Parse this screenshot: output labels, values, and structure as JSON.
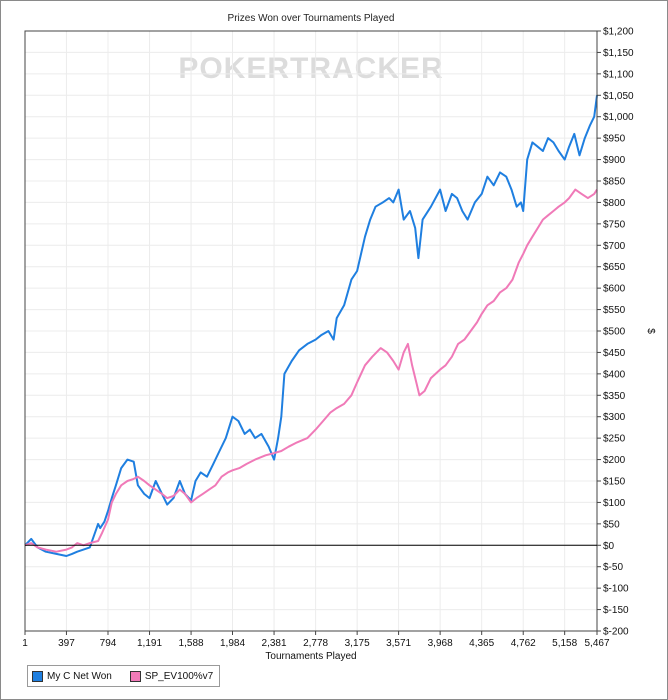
{
  "chart_data": {
    "type": "line",
    "title": "Prizes Won over Tournaments Played",
    "xlabel": "Tournaments Played",
    "ylabel": "$",
    "watermark": "POKERTRACKER",
    "xlim": [
      1,
      5467
    ],
    "ylim": [
      -200,
      1200
    ],
    "x_ticks": [
      1,
      397,
      794,
      1191,
      1588,
      1984,
      2381,
      2778,
      3175,
      3571,
      3968,
      4365,
      4762,
      5158,
      5467
    ],
    "x_tick_labels": [
      "1",
      "397",
      "794",
      "1,191",
      "1,588",
      "1,984",
      "2,381",
      "2,778",
      "3,175",
      "3,571",
      "3,968",
      "4,365",
      "4,762",
      "5,158",
      "5,467"
    ],
    "y_ticks": [
      -200,
      -150,
      -100,
      -50,
      0,
      50,
      100,
      150,
      200,
      250,
      300,
      350,
      400,
      450,
      500,
      550,
      600,
      650,
      700,
      750,
      800,
      850,
      900,
      950,
      1000,
      1050,
      1100,
      1150,
      1200
    ],
    "y_tick_labels": [
      "$-200",
      "$-150",
      "$-100",
      "$-50",
      "$0",
      "$50",
      "$100",
      "$150",
      "$200",
      "$250",
      "$300",
      "$350",
      "$400",
      "$450",
      "$500",
      "$550",
      "$600",
      "$650",
      "$700",
      "$750",
      "$800",
      "$850",
      "$900",
      "$950",
      "$1,000",
      "$1,050",
      "$1,100",
      "$1,150",
      "$1,200"
    ],
    "grid": true,
    "legend_position": "bottom-left",
    "series": [
      {
        "name": "My C Net Won",
        "color": "#1f7fe0",
        "x": [
          1,
          60,
          120,
          200,
          300,
          397,
          450,
          500,
          560,
          620,
          700,
          720,
          760,
          794,
          830,
          870,
          920,
          980,
          1040,
          1080,
          1140,
          1191,
          1250,
          1310,
          1360,
          1420,
          1480,
          1530,
          1588,
          1630,
          1680,
          1740,
          1800,
          1860,
          1920,
          1984,
          2040,
          2100,
          2150,
          2200,
          2260,
          2330,
          2381,
          2420,
          2450,
          2480,
          2550,
          2620,
          2700,
          2778,
          2830,
          2900,
          2950,
          2980,
          3050,
          3120,
          3175,
          3250,
          3300,
          3350,
          3420,
          3480,
          3520,
          3571,
          3620,
          3680,
          3730,
          3760,
          3800,
          3880,
          3968,
          4020,
          4080,
          4130,
          4180,
          4230,
          4300,
          4365,
          4420,
          4480,
          4540,
          4600,
          4650,
          4700,
          4740,
          4762,
          4800,
          4850,
          4900,
          4950,
          5000,
          5050,
          5100,
          5158,
          5200,
          5250,
          5300,
          5350,
          5400,
          5440,
          5467
        ],
        "values": [
          0,
          15,
          -5,
          -15,
          -20,
          -25,
          -20,
          -15,
          -10,
          -5,
          50,
          40,
          55,
          80,
          110,
          140,
          180,
          200,
          195,
          140,
          120,
          110,
          150,
          120,
          95,
          110,
          150,
          120,
          105,
          150,
          170,
          160,
          190,
          220,
          250,
          300,
          290,
          260,
          270,
          250,
          260,
          230,
          200,
          250,
          300,
          400,
          430,
          455,
          470,
          480,
          490,
          500,
          480,
          530,
          560,
          620,
          640,
          720,
          760,
          790,
          800,
          810,
          800,
          830,
          760,
          780,
          740,
          670,
          760,
          790,
          830,
          780,
          820,
          810,
          780,
          760,
          800,
          820,
          860,
          840,
          870,
          860,
          830,
          790,
          800,
          780,
          900,
          940,
          930,
          920,
          950,
          940,
          920,
          900,
          930,
          960,
          910,
          950,
          980,
          1000,
          1050
        ]
      },
      {
        "name": "SP_EV100%v7",
        "color": "#f07ab8",
        "x": [
          1,
          60,
          120,
          200,
          300,
          397,
          450,
          500,
          560,
          620,
          700,
          740,
          794,
          830,
          870,
          920,
          980,
          1040,
          1080,
          1140,
          1191,
          1250,
          1310,
          1360,
          1420,
          1480,
          1530,
          1588,
          1640,
          1700,
          1760,
          1820,
          1880,
          1940,
          1984,
          2050,
          2120,
          2200,
          2300,
          2381,
          2450,
          2520,
          2600,
          2700,
          2778,
          2850,
          2920,
          2980,
          3050,
          3120,
          3175,
          3250,
          3320,
          3400,
          3460,
          3520,
          3571,
          3620,
          3660,
          3700,
          3740,
          3770,
          3820,
          3880,
          3968,
          4020,
          4080,
          4140,
          4200,
          4260,
          4320,
          4365,
          4420,
          4480,
          4540,
          4600,
          4660,
          4720,
          4762,
          4800,
          4850,
          4900,
          4950,
          5000,
          5050,
          5100,
          5158,
          5200,
          5260,
          5320,
          5380,
          5440,
          5467
        ],
        "values": [
          0,
          5,
          -5,
          -10,
          -15,
          -10,
          -5,
          5,
          0,
          5,
          10,
          30,
          60,
          100,
          120,
          140,
          150,
          155,
          160,
          150,
          140,
          130,
          120,
          110,
          115,
          130,
          120,
          100,
          110,
          120,
          130,
          140,
          160,
          170,
          175,
          180,
          190,
          200,
          210,
          215,
          220,
          230,
          240,
          250,
          270,
          290,
          310,
          320,
          330,
          350,
          380,
          420,
          440,
          460,
          450,
          430,
          410,
          450,
          470,
          420,
          380,
          350,
          360,
          390,
          410,
          420,
          440,
          470,
          480,
          500,
          520,
          540,
          560,
          570,
          590,
          600,
          620,
          660,
          680,
          700,
          720,
          740,
          760,
          770,
          780,
          790,
          800,
          810,
          830,
          820,
          810,
          820,
          830
        ]
      }
    ]
  },
  "legend": {
    "items": [
      {
        "label": "My C Net Won",
        "color": "#1f7fe0"
      },
      {
        "label": "SP_EV100%v7",
        "color": "#f07ab8"
      }
    ]
  }
}
